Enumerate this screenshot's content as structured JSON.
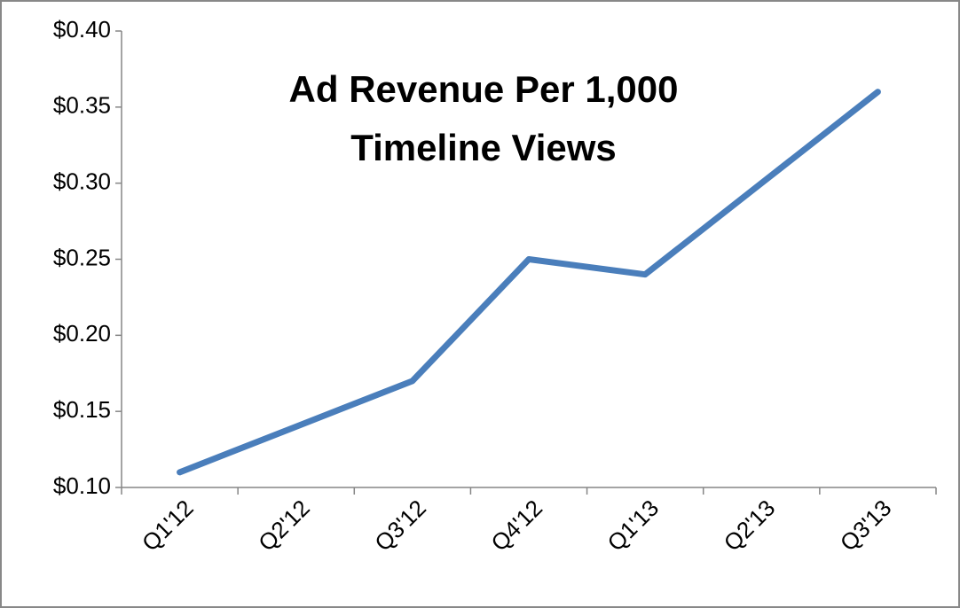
{
  "chart_data": {
    "type": "line",
    "title": "Ad Revenue Per 1,000 Timeline Views",
    "categories": [
      "Q1'12",
      "Q2'12",
      "Q3'12",
      "Q4'12",
      "Q1'13",
      "Q2'13",
      "Q3'13"
    ],
    "series": [
      {
        "color": "#4a7ebb",
        "values": [
          0.11,
          0.14,
          0.17,
          0.25,
          0.24,
          0.3,
          0.36
        ]
      }
    ],
    "ylim": [
      0.1,
      0.4
    ],
    "yticks": [
      {
        "value": 0.1,
        "label": "$0.10"
      },
      {
        "value": 0.15,
        "label": "$0.15"
      },
      {
        "value": 0.2,
        "label": "$0.20"
      },
      {
        "value": 0.25,
        "label": "$0.25"
      },
      {
        "value": 0.3,
        "label": "$0.30"
      },
      {
        "value": 0.35,
        "label": "$0.35"
      },
      {
        "value": 0.4,
        "label": "$0.40"
      }
    ],
    "grid": false
  }
}
